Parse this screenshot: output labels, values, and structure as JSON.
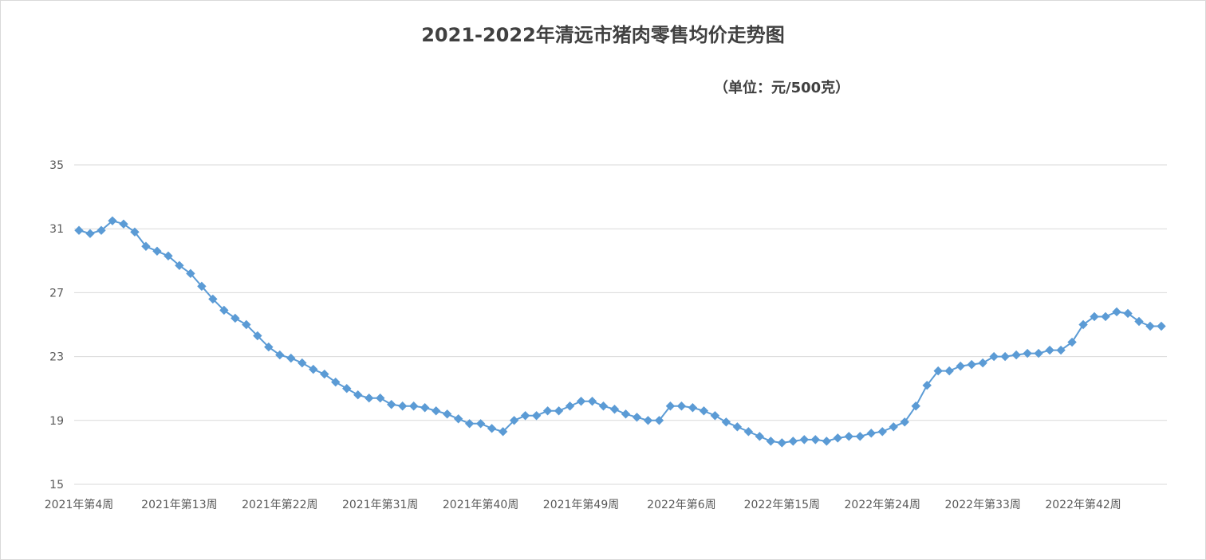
{
  "chart_data": {
    "type": "line",
    "title": "2021-2022年清远市猪肉零售均价走势图",
    "unit_label": "（单位：元/500克）",
    "xlabel": "",
    "ylabel": "",
    "ylim": [
      15,
      35
    ],
    "yticks": [
      15,
      19,
      23,
      27,
      31,
      35
    ],
    "grid": true,
    "legend": "none",
    "x_tick_labels": [
      "2021年第4周",
      "2021年第13周",
      "2021年第22周",
      "2021年第31周",
      "2021年第40周",
      "2021年第49周",
      "2022年第6周",
      "2022年第15周",
      "2022年第24周",
      "2022年第33周",
      "2022年第42周"
    ],
    "series": [
      {
        "color": "#5b9bd5",
        "values": [
          30.9,
          30.7,
          30.9,
          31.5,
          31.3,
          30.8,
          29.9,
          29.6,
          29.3,
          28.7,
          28.2,
          27.4,
          26.6,
          25.9,
          25.4,
          25.0,
          24.3,
          23.6,
          23.1,
          22.9,
          22.6,
          22.2,
          21.9,
          21.4,
          21.0,
          20.6,
          20.4,
          20.4,
          20.0,
          19.9,
          19.9,
          19.8,
          19.6,
          19.4,
          19.1,
          18.8,
          18.8,
          18.5,
          18.3,
          19.0,
          19.3,
          19.3,
          19.6,
          19.6,
          19.9,
          20.2,
          20.2,
          19.9,
          19.7,
          19.4,
          19.2,
          19.0,
          19.0,
          19.9,
          19.9,
          19.8,
          19.6,
          19.3,
          18.9,
          18.6,
          18.3,
          18.0,
          17.7,
          17.6,
          17.7,
          17.8,
          17.8,
          17.7,
          17.9,
          18.0,
          18.0,
          18.2,
          18.3,
          18.6,
          18.9,
          19.9,
          21.2,
          22.1,
          22.1,
          22.4,
          22.5,
          22.6,
          23.0,
          23.0,
          23.1,
          23.2,
          23.2,
          23.4,
          23.4,
          23.9,
          25.0,
          25.5,
          25.5,
          25.8,
          25.7,
          25.2,
          24.9,
          24.9
        ]
      }
    ]
  }
}
